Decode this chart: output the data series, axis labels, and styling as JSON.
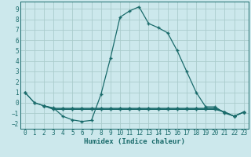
{
  "xlabel": "Humidex (Indice chaleur)",
  "background_color": "#cce8ec",
  "grid_color": "#aacccc",
  "line_color": "#1a6b6b",
  "xlim": [
    -0.5,
    23.5
  ],
  "ylim": [
    -2.5,
    9.7
  ],
  "xticks": [
    0,
    1,
    2,
    3,
    4,
    5,
    6,
    7,
    8,
    9,
    10,
    11,
    12,
    13,
    14,
    15,
    16,
    17,
    18,
    19,
    20,
    21,
    22,
    23
  ],
  "yticks": [
    -2,
    -1,
    0,
    1,
    2,
    3,
    4,
    5,
    6,
    7,
    8,
    9
  ],
  "series0_x": [
    0,
    1,
    2,
    3,
    4,
    5,
    6,
    7,
    8,
    9,
    10,
    11,
    12,
    13,
    14,
    15,
    16,
    17,
    18,
    19,
    20,
    21,
    22,
    23
  ],
  "series0_y": [
    1.0,
    0.0,
    -0.3,
    -0.5,
    -1.3,
    -1.65,
    -1.8,
    -1.7,
    0.8,
    4.3,
    8.2,
    8.8,
    9.2,
    7.6,
    7.2,
    6.7,
    5.0,
    3.0,
    1.0,
    -0.4,
    -0.4,
    -1.0,
    -1.3,
    -0.9
  ],
  "series1_x": [
    0,
    1,
    2,
    3,
    4,
    5,
    6,
    7,
    8,
    9,
    10,
    11,
    12,
    13,
    14,
    15,
    16,
    17,
    18,
    19,
    20,
    21,
    22,
    23
  ],
  "series1_y": [
    1.0,
    0.0,
    -0.3,
    -0.55,
    -0.55,
    -0.55,
    -0.55,
    -0.55,
    -0.55,
    -0.55,
    -0.55,
    -0.55,
    -0.55,
    -0.55,
    -0.55,
    -0.55,
    -0.55,
    -0.55,
    -0.55,
    -0.55,
    -0.55,
    -0.9,
    -1.3,
    -0.9
  ],
  "series2_x": [
    2,
    3,
    4,
    5,
    6,
    7,
    8,
    9,
    10,
    11,
    12,
    13,
    14,
    15,
    16,
    17,
    18,
    19,
    20,
    21,
    22,
    23
  ],
  "series2_y": [
    -0.3,
    -0.55,
    -0.55,
    -0.55,
    -0.55,
    -0.55,
    -0.55,
    -0.55,
    -0.55,
    -0.55,
    -0.55,
    -0.55,
    -0.55,
    -0.55,
    -0.55,
    -0.55,
    -0.55,
    -0.55,
    -0.55,
    -0.9,
    -1.3,
    -0.9
  ],
  "series3_x": [
    2,
    3,
    4,
    5,
    6,
    7,
    8,
    9,
    10,
    11,
    12,
    13,
    14,
    15,
    16,
    17,
    18,
    19,
    20,
    21,
    22,
    23
  ],
  "series3_y": [
    -0.3,
    -0.65,
    -0.65,
    -0.65,
    -0.65,
    -0.65,
    -0.65,
    -0.65,
    -0.65,
    -0.65,
    -0.65,
    -0.65,
    -0.65,
    -0.65,
    -0.65,
    -0.65,
    -0.65,
    -0.65,
    -0.65,
    -0.9,
    -1.3,
    -0.9
  ]
}
